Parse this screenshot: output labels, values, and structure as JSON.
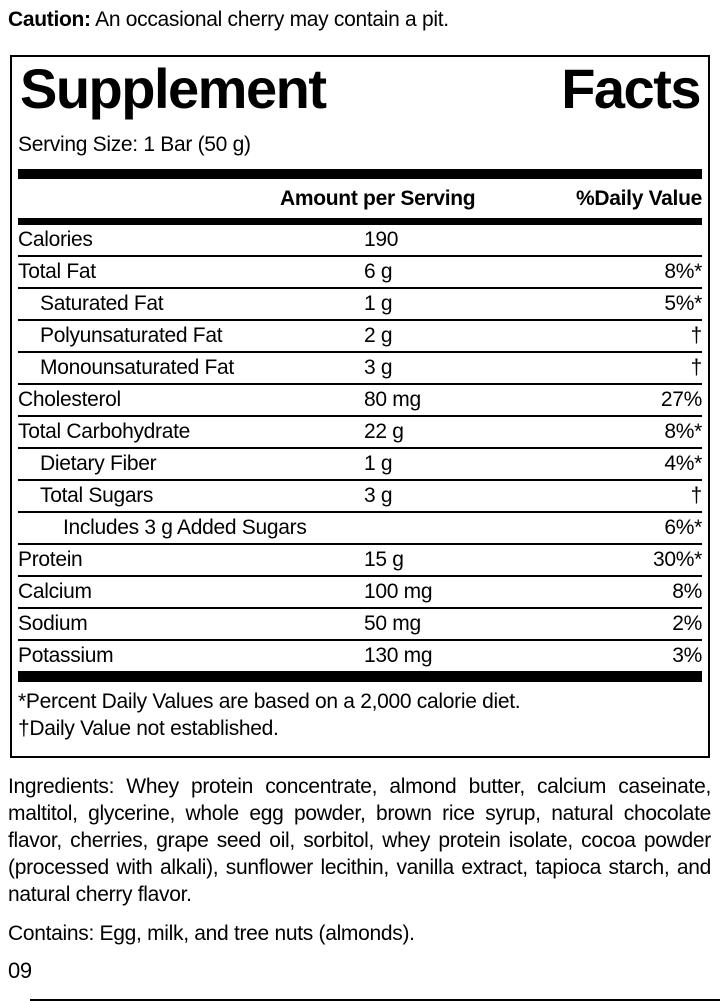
{
  "caution": {
    "label": "Caution:",
    "text": "An occasional cherry may contain a pit."
  },
  "panel": {
    "title_words": [
      "Supplement",
      "Facts"
    ],
    "serving_size": "Serving Size: 1 Bar (50 g)",
    "columns": {
      "amount": "Amount per Serving",
      "daily_value": "%Daily Value"
    },
    "rows": [
      {
        "name": "Calories",
        "amount": "190",
        "dv": "",
        "indent": 0
      },
      {
        "name": "Total Fat",
        "amount": "6 g",
        "dv": "8%*",
        "indent": 0
      },
      {
        "name": "Saturated Fat",
        "amount": "1 g",
        "dv": "5%*",
        "indent": 1
      },
      {
        "name": "Polyunsaturated Fat",
        "amount": "2 g",
        "dv": "†",
        "indent": 1
      },
      {
        "name": "Monounsaturated Fat",
        "amount": "3 g",
        "dv": "†",
        "indent": 1
      },
      {
        "name": "Cholesterol",
        "amount": "80 mg",
        "dv": "27%",
        "indent": 0
      },
      {
        "name": "Total Carbohydrate",
        "amount": "22 g",
        "dv": "8%*",
        "indent": 0
      },
      {
        "name": "Dietary Fiber",
        "amount": "1 g",
        "dv": "4%*",
        "indent": 1
      },
      {
        "name": "Total Sugars",
        "amount": "3 g",
        "dv": "†",
        "indent": 1
      },
      {
        "name": "Includes 3 g Added Sugars",
        "amount": "",
        "dv": "6%*",
        "indent": 2
      },
      {
        "name": "Protein",
        "amount": "15 g",
        "dv": "30%*",
        "indent": 0
      },
      {
        "name": "Calcium",
        "amount": "100 mg",
        "dv": "8%",
        "indent": 0
      },
      {
        "name": "Sodium",
        "amount": "50 mg",
        "dv": "2%",
        "indent": 0
      },
      {
        "name": "Potassium",
        "amount": "130 mg",
        "dv": "3%",
        "indent": 0
      }
    ],
    "footnotes": [
      "*Percent Daily Values are based on a 2,000 calorie diet.",
      "†Daily Value not established."
    ]
  },
  "ingredients": "Ingredients: Whey protein concentrate, almond butter, calcium caseinate, maltitol, glycerine, whole egg powder, brown rice syrup, natural chocolate flavor, cherries, grape seed oil, sorbitol, whey protein isolate, cocoa powder (processed with alkali), sunflower lecithin, vanilla extract, tapioca starch, and natural cherry flavor.",
  "contains": "Contains: Egg, milk, and tree nuts (almonds).",
  "footer_code": "09",
  "colors": {
    "text": "#000000",
    "background": "#ffffff",
    "rule": "#000000"
  }
}
